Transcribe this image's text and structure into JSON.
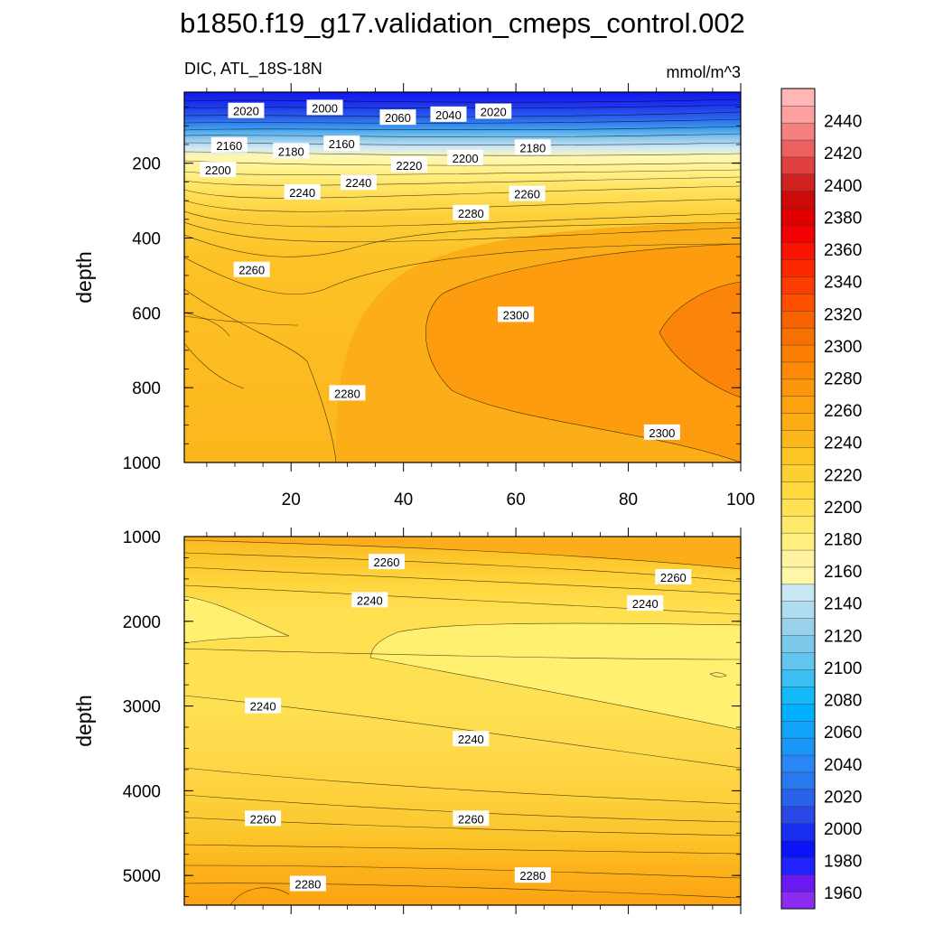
{
  "figure": {
    "title": "b1850.f19_g17.validation_cmeps_control.002",
    "left_subtitle": "DIC, ATL_18S-18N",
    "right_subtitle": "mmol/m^3"
  },
  "chart_data": [
    {
      "type": "contour",
      "panel": "upper",
      "ylabel": "depth",
      "xlim": [
        1,
        100
      ],
      "ylim": [
        1000,
        10
      ],
      "x_ticks": [
        20,
        40,
        60,
        80,
        100
      ],
      "x_tick_labels": [
        "20",
        "40",
        "60",
        "80",
        "100"
      ],
      "y_ticks": [
        200,
        400,
        600,
        800,
        1000
      ],
      "y_tick_labels": [
        "200",
        "400",
        "600",
        "800",
        "1000"
      ],
      "contour_labels": [
        {
          "text": "2020",
          "x": 12,
          "y": 60
        },
        {
          "text": "2000",
          "x": 26,
          "y": 52
        },
        {
          "text": "2060",
          "x": 39,
          "y": 78
        },
        {
          "text": "2040",
          "x": 48,
          "y": 70
        },
        {
          "text": "2020",
          "x": 56,
          "y": 62
        },
        {
          "text": "2160",
          "x": 9,
          "y": 152
        },
        {
          "text": "2180",
          "x": 20,
          "y": 168
        },
        {
          "text": "2160",
          "x": 29,
          "y": 148
        },
        {
          "text": "2180",
          "x": 63,
          "y": 158
        },
        {
          "text": "2200",
          "x": 7,
          "y": 218
        },
        {
          "text": "2200",
          "x": 51,
          "y": 186
        },
        {
          "text": "2220",
          "x": 41,
          "y": 205
        },
        {
          "text": "2240",
          "x": 22,
          "y": 278
        },
        {
          "text": "2240",
          "x": 32,
          "y": 252
        },
        {
          "text": "2260",
          "x": 62,
          "y": 282
        },
        {
          "text": "2280",
          "x": 52,
          "y": 333
        },
        {
          "text": "2260",
          "x": 13,
          "y": 485
        },
        {
          "text": "2300",
          "x": 60,
          "y": 605
        },
        {
          "text": "2280",
          "x": 30,
          "y": 815
        },
        {
          "text": "2300",
          "x": 86,
          "y": 920
        }
      ]
    },
    {
      "type": "contour",
      "panel": "lower",
      "ylabel": "depth",
      "xlim": [
        1,
        100
      ],
      "ylim": [
        5350,
        1000
      ],
      "y_ticks": [
        1000,
        2000,
        3000,
        4000,
        5000
      ],
      "y_tick_labels": [
        "1000",
        "2000",
        "3000",
        "4000",
        "5000"
      ],
      "contour_labels": [
        {
          "text": "2260",
          "x": 37,
          "y": 1300
        },
        {
          "text": "2260",
          "x": 88,
          "y": 1480
        },
        {
          "text": "2240",
          "x": 34,
          "y": 1750
        },
        {
          "text": "2240",
          "x": 83,
          "y": 1790
        },
        {
          "text": "2240",
          "x": 15,
          "y": 3000
        },
        {
          "text": "2240",
          "x": 52,
          "y": 3390
        },
        {
          "text": "2260",
          "x": 15,
          "y": 4330
        },
        {
          "text": "2260",
          "x": 52,
          "y": 4330
        },
        {
          "text": "2280",
          "x": 23,
          "y": 5100
        },
        {
          "text": "2280",
          "x": 63,
          "y": 5000
        }
      ]
    },
    {
      "type": "colorbar",
      "orientation": "vertical",
      "range": [
        1950,
        2460
      ],
      "tick_labels": [
        "1960",
        "1980",
        "2000",
        "2020",
        "2040",
        "2060",
        "2080",
        "2100",
        "2120",
        "2140",
        "2160",
        "2180",
        "2200",
        "2220",
        "2240",
        "2260",
        "2280",
        "2300",
        "2320",
        "2340",
        "2360",
        "2380",
        "2400",
        "2420",
        "2440"
      ],
      "colors": [
        "#8c2cf0",
        "#6a1af0",
        "#2222ff",
        "#0a14f5",
        "#1a2ef0",
        "#2a48e8",
        "#2a62ec",
        "#2878f0",
        "#2a86f5",
        "#1a96f8",
        "#12a4fa",
        "#00b0fc",
        "#14baf7",
        "#3cc0f4",
        "#64c6f0",
        "#7cc8ea",
        "#98d2ea",
        "#b0dcf0",
        "#c8e6f4",
        "#fff7a8",
        "#fff2a0",
        "#fff080",
        "#ffe86a",
        "#ffe154",
        "#fed83c",
        "#fcd030",
        "#fcc526",
        "#fcb81a",
        "#fcad14",
        "#fca20c",
        "#fc960a",
        "#fc8a06",
        "#fc7e02",
        "#f87000",
        "#f86200",
        "#fc5000",
        "#fc3c00",
        "#fc2800",
        "#fa1400",
        "#f00000",
        "#e00000",
        "#cc0a0a",
        "#d02020",
        "#e04040",
        "#ec6060",
        "#f48080",
        "#fca0a0",
        "#ffb6b6"
      ]
    }
  ]
}
